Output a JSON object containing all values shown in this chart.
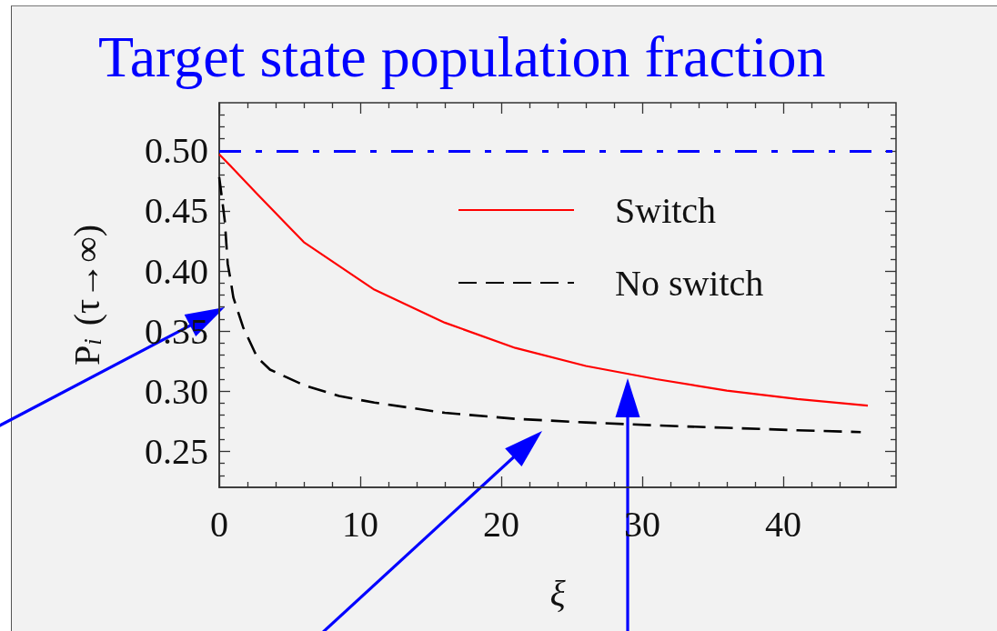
{
  "chart_data": {
    "type": "line",
    "title": "Target state population fraction",
    "xlabel": "ξ",
    "ylabel": "P$_{i}$ (τ→∞)",
    "series": [
      {
        "name": "Switch",
        "color": "#ff0000",
        "line_style": "solid",
        "x": [
          0,
          1,
          2.7,
          6,
          11,
          16,
          21,
          26,
          31,
          36,
          41,
          46
        ],
        "values": [
          0.497,
          0.485,
          0.464,
          0.424,
          0.3845,
          0.357,
          0.336,
          0.321,
          0.31,
          0.3005,
          0.2935,
          0.288
        ]
      },
      {
        "name": "No switch",
        "color": "#000000",
        "line_style": "dashed",
        "x": [
          0,
          0.2,
          0.4,
          0.6,
          0.8,
          1,
          1.7,
          2.7,
          3.6,
          4.7,
          6,
          8.5,
          11,
          16,
          21,
          26,
          31,
          36,
          41,
          45.5
        ],
        "values": [
          0.478,
          0.46,
          0.441,
          0.406,
          0.393,
          0.378,
          0.353,
          0.328,
          0.318,
          0.312,
          0.305,
          0.296,
          0.2905,
          0.282,
          0.277,
          0.274,
          0.2715,
          0.2695,
          0.2675,
          0.266
        ]
      }
    ],
    "xlim": [
      0,
      48
    ],
    "ylim": [
      0.22,
      0.54
    ],
    "xticks": [
      0,
      {
        "value": 2,
        "label": null
      },
      {
        "value": 4,
        "label": null
      },
      {
        "value": 6,
        "label": null
      },
      {
        "value": 8,
        "label": null
      },
      10,
      {
        "value": 12,
        "label": null
      },
      {
        "value": 14,
        "label": null
      },
      {
        "value": 16,
        "label": null
      },
      {
        "value": 18,
        "label": null
      },
      20,
      {
        "value": 22,
        "label": null
      },
      {
        "value": 24,
        "label": null
      },
      {
        "value": 26,
        "label": null
      },
      {
        "value": 28,
        "label": null
      },
      30,
      {
        "value": 32,
        "label": null
      },
      {
        "value": 34,
        "label": null
      },
      {
        "value": 36,
        "label": null
      },
      {
        "value": 38,
        "label": null
      },
      40,
      {
        "value": 42,
        "label": null
      },
      {
        "value": 44,
        "label": null
      },
      {
        "value": 46,
        "label": null
      }
    ],
    "yticks": [
      {
        "value": 0.23,
        "label": null
      },
      {
        "value": 0.24,
        "label": null
      },
      {
        "value": 0.25,
        "label": "0.25"
      },
      {
        "value": 0.26,
        "label": null
      },
      {
        "value": 0.27,
        "label": null
      },
      {
        "value": 0.28,
        "label": null
      },
      {
        "value": 0.29,
        "label": null
      },
      {
        "value": 0.3,
        "label": "0.30"
      },
      {
        "value": 0.31,
        "label": null
      },
      {
        "value": 0.32,
        "label": null
      },
      {
        "value": 0.33,
        "label": null
      },
      {
        "value": 0.34,
        "label": null
      },
      {
        "value": 0.35,
        "label": "0.35"
      },
      {
        "value": 0.36,
        "label": null
      },
      {
        "value": 0.37,
        "label": null
      },
      {
        "value": 0.38,
        "label": null
      },
      {
        "value": 0.39,
        "label": null
      },
      {
        "value": 0.4,
        "label": "0.40"
      },
      {
        "value": 0.41,
        "label": null
      },
      {
        "value": 0.42,
        "label": null
      },
      {
        "value": 0.43,
        "label": null
      },
      {
        "value": 0.44,
        "label": null
      },
      {
        "value": 0.45,
        "label": "0.45"
      },
      {
        "value": 0.46,
        "label": null
      },
      {
        "value": 0.47,
        "label": null
      },
      {
        "value": 0.48,
        "label": null
      },
      {
        "value": 0.49,
        "label": null
      },
      {
        "value": 0.5,
        "label": "0.50"
      },
      {
        "value": 0.51,
        "label": null
      },
      {
        "value": 0.52,
        "label": null
      },
      {
        "value": 0.53,
        "label": null
      }
    ],
    "ref_lines": [
      {
        "axis": "y",
        "value": 0.5,
        "color": "#0000ff",
        "line_style": "dashdot"
      }
    ],
    "legend": "top right",
    "grid": false,
    "marker": "none"
  }
}
